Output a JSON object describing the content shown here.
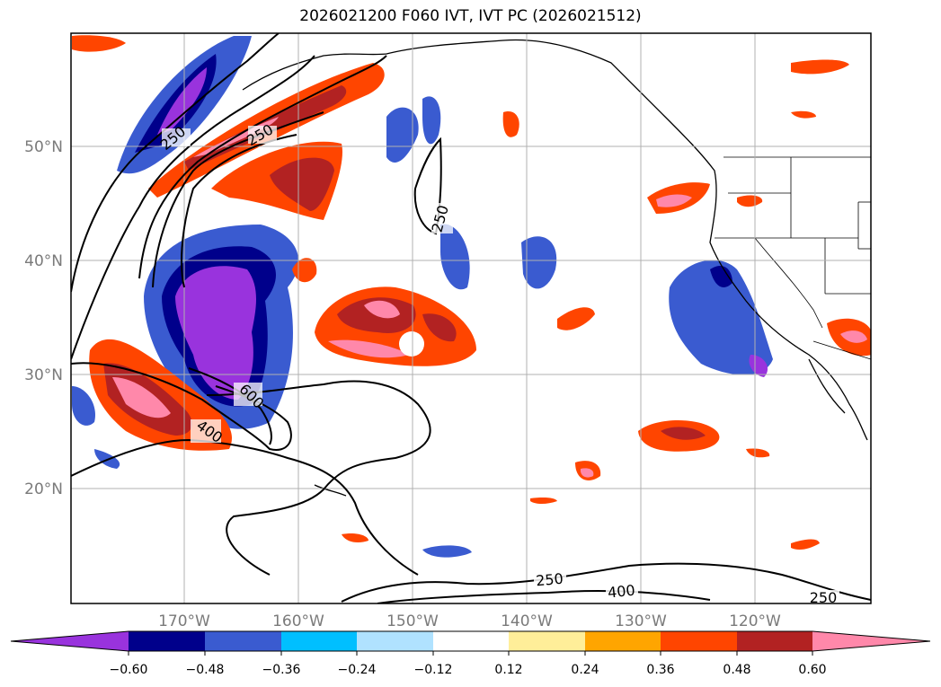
{
  "title": "2026021200 F060 IVT, IVT PC (2026021512)",
  "lat_labels": [
    "50°N",
    "40°N",
    "30°N",
    "20°N"
  ],
  "lon_labels": [
    "170°W",
    "160°W",
    "150°W",
    "140°W",
    "130°W",
    "120°W"
  ],
  "contour_labels": [
    "250",
    "250",
    "250",
    "600",
    "400",
    "250",
    "400",
    "250"
  ],
  "colorbar": {
    "colors": [
      "#9933dd",
      "#00008b",
      "#3a5bd0",
      "#00bfff",
      "#b0e2ff",
      "#ffffff",
      "#ffee99",
      "#ffa500",
      "#ff4500",
      "#b22222",
      "#ff88aa"
    ],
    "labels": [
      "−0.60",
      "−0.48",
      "−0.36",
      "−0.24",
      "−0.12",
      "0.12",
      "0.24",
      "0.36",
      "0.48",
      "0.60"
    ]
  }
}
